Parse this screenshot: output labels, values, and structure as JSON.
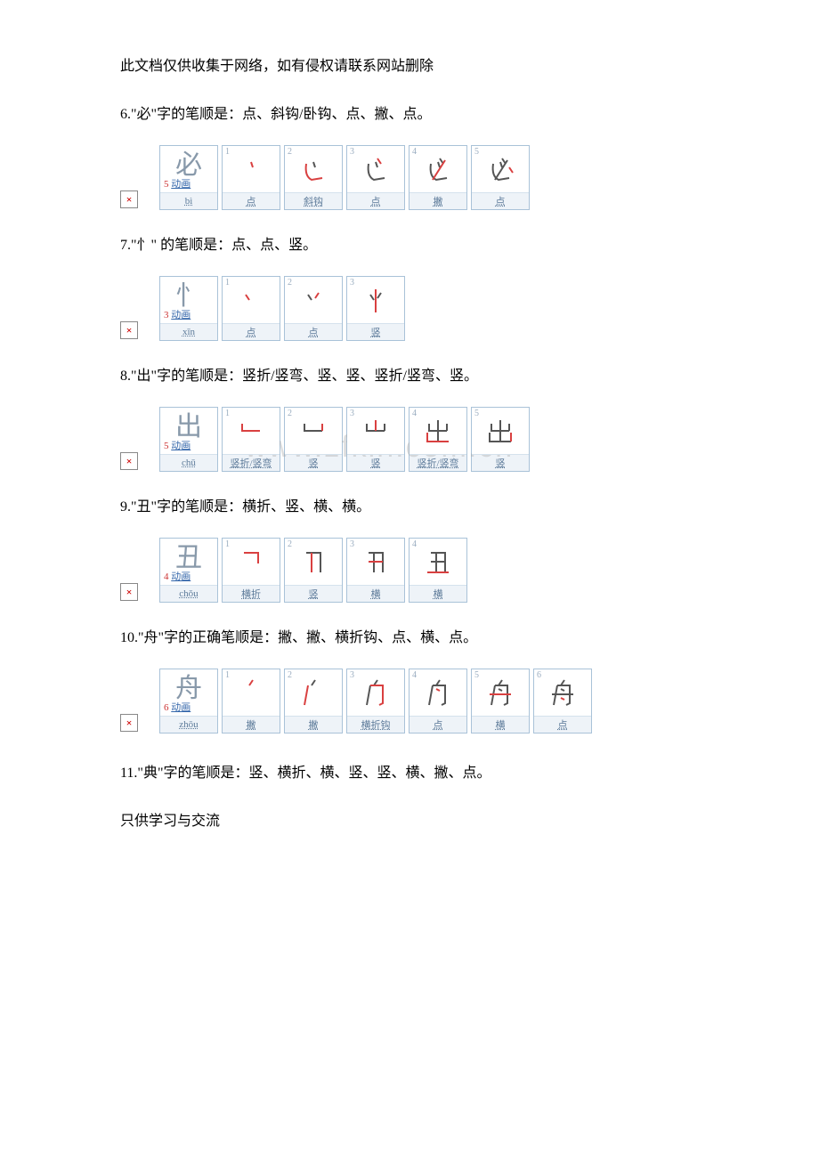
{
  "header": "此文档仅供收集于网络，如有侵权请联系网站删除",
  "entries": [
    {
      "num": "6",
      "text": "6.\"必\"字的笔顺是：点、斜钩/卧钩、点、撇、点。",
      "char": "必",
      "pinyin": "bì",
      "count": "5",
      "strokes": [
        "点",
        "斜钩",
        "点",
        "撇",
        "点"
      ],
      "svgs": [
        "<path d='M20 12 L22 18' stroke='#d94040' stroke-width='2' fill='none'/>",
        "<path d='M20 12 L22 18' stroke='#555' stroke-width='2' fill='none'/><path d='M12 14 Q10 28 18 32 L30 30' stroke='#d94040' stroke-width='2' fill='none'/>",
        "<path d='M20 12 L22 18' stroke='#555' stroke-width='2' fill='none'/><path d='M12 14 Q10 28 18 32 L30 30' stroke='#555' stroke-width='2' fill='none'/><path d='M22 8 L26 14' stroke='#d94040' stroke-width='2' fill='none'/>",
        "<path d='M20 12 L22 18' stroke='#555' stroke-width='2' fill='none'/><path d='M12 14 Q10 28 18 32 L30 30' stroke='#555' stroke-width='2' fill='none'/><path d='M22 8 L26 14' stroke='#555' stroke-width='2' fill='none'/><path d='M28 10 L14 32' stroke='#d94040' stroke-width='2' fill='none'/>",
        "<path d='M20 12 L22 18' stroke='#555' stroke-width='2' fill='none'/><path d='M12 14 Q10 28 18 32 L30 30' stroke='#555' stroke-width='2' fill='none'/><path d='M22 8 L26 14' stroke='#555' stroke-width='2' fill='none'/><path d='M28 10 L14 32' stroke='#555' stroke-width='2' fill='none'/><path d='M30 18 L34 24' stroke='#d94040' stroke-width='2' fill='none'/>"
      ]
    },
    {
      "num": "7",
      "text": "7.\"忄\" 的笔顺是：点、点、竖。",
      "char": "忄",
      "pinyin": "xīn",
      "count": "3",
      "strokes": [
        "点",
        "点",
        "竖"
      ],
      "svgs": [
        "<path d='M14 14 L18 20' stroke='#d94040' stroke-width='2' fill='none'/>",
        "<path d='M14 14 L18 20' stroke='#555' stroke-width='2' fill='none'/><path d='M26 12 L22 18' stroke='#d94040' stroke-width='2' fill='none'/>",
        "<path d='M14 14 L18 20' stroke='#555' stroke-width='2' fill='none'/><path d='M26 12 L22 18' stroke='#555' stroke-width='2' fill='none'/><path d='M20 8 L20 34' stroke='#d94040' stroke-width='2' fill='none'/>"
      ]
    },
    {
      "num": "8",
      "text": "8.\"出\"字的笔顺是：竖折/竖弯、竖、竖、竖折/竖弯、竖。",
      "char": "出",
      "pinyin": "chū",
      "count": "5",
      "strokes": [
        "竖折/竖弯",
        "竖",
        "竖",
        "竖折/竖弯",
        "竖"
      ],
      "watermark": "www.zfkin.com.cn",
      "svgs": [
        "<path d='M10 12 L10 20 L30 20' stroke='#d94040' stroke-width='2' fill='none'/>",
        "<path d='M10 12 L10 20 L30 20' stroke='#555' stroke-width='2' fill='none'/><path d='M30 12 L30 20' stroke='#d94040' stroke-width='2' fill='none'/>",
        "<path d='M10 12 L10 20 L30 20' stroke='#555' stroke-width='2' fill='none'/><path d='M30 12 L30 20' stroke='#555' stroke-width='2' fill='none'/><path d='M20 8 L20 20' stroke='#d94040' stroke-width='2' fill='none'/>",
        "<path d='M10 12 L10 20 L30 20' stroke='#555' stroke-width='2' fill='none'/><path d='M30 12 L30 20' stroke='#555' stroke-width='2' fill='none'/><path d='M20 8 L20 32' stroke='#555' stroke-width='2' fill='none'/><path d='M8 22 L8 32 L32 32' stroke='#d94040' stroke-width='2' fill='none'/>",
        "<path d='M10 12 L10 20 L30 20' stroke='#555' stroke-width='2' fill='none'/><path d='M30 12 L30 20' stroke='#555' stroke-width='2' fill='none'/><path d='M20 8 L20 32' stroke='#555' stroke-width='2' fill='none'/><path d='M8 22 L8 32 L32 32' stroke='#555' stroke-width='2' fill='none'/><path d='M32 22 L32 32' stroke='#d94040' stroke-width='2' fill='none'/>"
      ]
    },
    {
      "num": "9",
      "text": "9.\"丑\"字的笔顺是：横折、竖、横、横。",
      "char": "丑",
      "pinyin": "chǒu",
      "count": "4",
      "strokes": [
        "横折",
        "竖",
        "横",
        "横"
      ],
      "svgs": [
        "<path d='M12 10 L28 10 L28 22' stroke='#d94040' stroke-width='2' fill='none'/>",
        "<path d='M12 10 L28 10 L28 32' stroke='#555' stroke-width='2' fill='none'/><path d='M18 10 L18 32' stroke='#d94040' stroke-width='2' fill='none'/>",
        "<path d='M12 10 L28 10 L28 32' stroke='#555' stroke-width='2' fill='none'/><path d='M18 10 L18 32' stroke='#555' stroke-width='2' fill='none'/><path d='M12 20 L28 20' stroke='#d94040' stroke-width='2' fill='none'/>",
        "<path d='M12 10 L28 10 L28 32' stroke='#555' stroke-width='2' fill='none'/><path d='M18 10 L18 32' stroke='#555' stroke-width='2' fill='none'/><path d='M12 20 L28 20' stroke='#555' stroke-width='2' fill='none'/><path d='M8 32 L32 32' stroke='#d94040' stroke-width='2' fill='none'/>"
      ]
    },
    {
      "num": "10",
      "text": "10.\"舟\"字的正确笔顺是：撇、撇、横折钩、点、横、点。",
      "char": "舟",
      "pinyin": "zhōu",
      "count": "6",
      "strokes": [
        "撇",
        "撇",
        "横折钩",
        "点",
        "横",
        "点"
      ],
      "svgs": [
        "<path d='M22 6 L18 12' stroke='#d94040' stroke-width='2' fill='none'/>",
        "<path d='M22 6 L18 12' stroke='#555' stroke-width='2' fill='none'/><path d='M14 12 L10 34' stroke='#d94040' stroke-width='2' fill='none'/>",
        "<path d='M22 6 L18 12' stroke='#555' stroke-width='2' fill='none'/><path d='M14 12 L10 34' stroke='#555' stroke-width='2' fill='none'/><path d='M14 12 L28 12 L28 32 L24 34' stroke='#d94040' stroke-width='2' fill='none'/>",
        "<path d='M22 6 L18 12' stroke='#555' stroke-width='2' fill='none'/><path d='M14 12 L10 34' stroke='#555' stroke-width='2' fill='none'/><path d='M14 12 L28 12 L28 32 L24 34' stroke='#555' stroke-width='2' fill='none'/><path d='M18 16 L22 18' stroke='#d94040' stroke-width='2' fill='none'/>",
        "<path d='M22 6 L18 12' stroke='#555' stroke-width='2' fill='none'/><path d='M14 12 L10 34' stroke='#555' stroke-width='2' fill='none'/><path d='M14 12 L28 12 L28 32 L24 34' stroke='#555' stroke-width='2' fill='none'/><path d='M18 16 L22 18' stroke='#555' stroke-width='2' fill='none'/><path d='M8 22 L32 22' stroke='#d94040' stroke-width='2' fill='none'/>",
        "<path d='M22 6 L18 12' stroke='#555' stroke-width='2' fill='none'/><path d='M14 12 L10 34' stroke='#555' stroke-width='2' fill='none'/><path d='M14 12 L28 12 L28 32 L24 34' stroke='#555' stroke-width='2' fill='none'/><path d='M18 16 L22 18' stroke='#555' stroke-width='2' fill='none'/><path d='M8 22 L32 22' stroke='#555' stroke-width='2' fill='none'/><path d='M18 26 L22 28' stroke='#d94040' stroke-width='2' fill='none'/>"
      ]
    }
  ],
  "entry11": "11.\"典\"字的笔顺是：竖、横折、横、竖、竖、横、撇、点。",
  "footer": "只供学习与交流",
  "anim_label": "动画",
  "broken_icon": "×",
  "colors": {
    "cell_border": "#a9c2d8",
    "cell_bg": "#f5f9fc",
    "foot_bg": "#eef3f8",
    "foot_text": "#5c7a99",
    "count_text": "#cc3333",
    "anim_text": "#3366aa",
    "step_num": "#9aadc0",
    "glyph": "#8899aa",
    "broken": "#cc0000"
  }
}
